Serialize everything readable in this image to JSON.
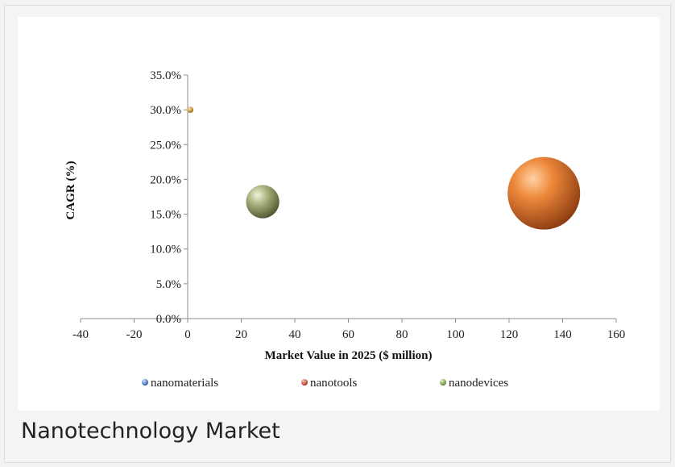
{
  "caption": "Nanotechnology Market",
  "chart_data": {
    "type": "bubble",
    "xlabel": "Market Value in 2025 ($ million)",
    "ylabel": "CAGR (%)",
    "xlim": [
      -40,
      160
    ],
    "ylim": [
      0,
      35
    ],
    "x_ticks": [
      -40,
      -20,
      0,
      20,
      40,
      60,
      80,
      100,
      120,
      140,
      160
    ],
    "y_ticks": [
      "0.0%",
      "5.0%",
      "10.0%",
      "15.0%",
      "20.0%",
      "25.0%",
      "30.0%",
      "35.0%"
    ],
    "legend_position": "bottom",
    "series": [
      {
        "name": "nanomaterials",
        "x": 1,
        "y": 30.0,
        "size": 1,
        "color": "#b8861f"
      },
      {
        "name": "nanotools",
        "x": 133,
        "y": 18.0,
        "size": 133,
        "color": "#c0551a"
      },
      {
        "name": "nanodevices",
        "x": 28,
        "y": 16.8,
        "size": 28,
        "color": "#7a8552"
      }
    ],
    "legend": [
      {
        "label": "nanomaterials",
        "color": "#3a6fc4"
      },
      {
        "label": "nanotools",
        "color": "#c0392b"
      },
      {
        "label": "nanodevices",
        "color": "#7cab3c"
      }
    ]
  }
}
